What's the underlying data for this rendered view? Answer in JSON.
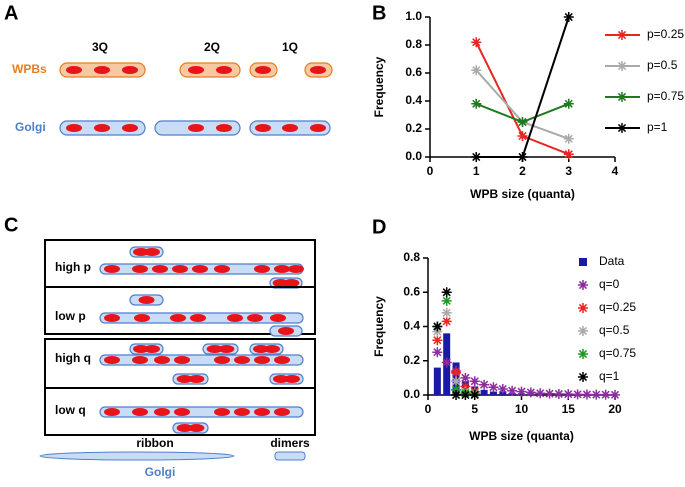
{
  "panel_a": {
    "letter": "A",
    "labels": [
      "3Q",
      "2Q",
      "1Q"
    ],
    "rows": [
      "WPBs",
      "Golgi"
    ]
  },
  "panel_c": {
    "letter": "C",
    "rows": [
      "high p",
      "low p",
      "high q",
      "low q"
    ],
    "ribbon": "ribbon",
    "dimers": "dimers",
    "golgi": "Golgi"
  },
  "chart_data": [
    {
      "panel": "B",
      "type": "line",
      "xlabel": "WPB size (quanta)",
      "ylabel": "Frequency",
      "x": [
        1,
        2,
        3
      ],
      "xlim": [
        0,
        4
      ],
      "xticks": [
        0,
        1,
        2,
        3,
        4
      ],
      "ylim": [
        0,
        1
      ],
      "yticks": [
        {
          "value": 0,
          "label": "0.0"
        },
        {
          "value": 0.2,
          "label": "0.2"
        },
        {
          "value": 0.4,
          "label": "0.4"
        },
        {
          "value": 0.6,
          "label": "0.6"
        },
        {
          "value": 0.8,
          "label": "0.8"
        },
        {
          "value": 1,
          "label": "1.0"
        }
      ],
      "series": [
        {
          "name": "p=0.25",
          "color": "#e8251f",
          "values": [
            0.82,
            0.15,
            0.02
          ]
        },
        {
          "name": "p=0.5",
          "color": "#aaaaaa",
          "values": [
            0.62,
            0.25,
            0.13
          ]
        },
        {
          "name": "p=0.75",
          "color": "#1e7a1e",
          "values": [
            0.38,
            0.25,
            0.38
          ]
        },
        {
          "name": "p=1",
          "color": "#000000",
          "values": [
            0,
            0,
            1
          ]
        }
      ]
    },
    {
      "panel": "D",
      "type": "bar",
      "xlabel": "WPB size (quanta)",
      "ylabel": "Frequency",
      "xlim": [
        0,
        20
      ],
      "xticks": [
        0,
        5,
        10,
        15,
        20
      ],
      "ylim": [
        0,
        0.8
      ],
      "yticks": [
        {
          "value": 0,
          "label": "0.0"
        },
        {
          "value": 0.2,
          "label": "0.2"
        },
        {
          "value": 0.4,
          "label": "0.4"
        },
        {
          "value": 0.6,
          "label": "0.6"
        },
        {
          "value": 0.8,
          "label": "0.8"
        }
      ],
      "series": [
        {
          "name": "Data",
          "type": "bar",
          "color": "#1a1aa6",
          "x": [
            1,
            2,
            3,
            4,
            5,
            6,
            7,
            8,
            9,
            10,
            11,
            12
          ],
          "values": [
            0.16,
            0.36,
            0.19,
            0.08,
            0.05,
            0.03,
            0.02,
            0.02,
            0.01,
            0.01,
            0.01,
            0.01
          ]
        },
        {
          "name": "q=0",
          "type": "scatter",
          "color": "#8b2ca0",
          "x": [
            1,
            2,
            3,
            4,
            5,
            6,
            7,
            8,
            9,
            10,
            11,
            12,
            13,
            14,
            15,
            16,
            17,
            18,
            19,
            20
          ],
          "values": [
            0.25,
            0.19,
            0.14,
            0.1,
            0.08,
            0.06,
            0.045,
            0.035,
            0.025,
            0.02,
            0.015,
            0.01,
            0.008,
            0.006,
            0.005,
            0.004,
            0.003,
            0.002,
            0.002,
            0.001
          ]
        },
        {
          "name": "q=0.25",
          "type": "scatter",
          "color": "#e8251f",
          "x": [
            1,
            2,
            3,
            4,
            5
          ],
          "values": [
            0.32,
            0.43,
            0.13,
            0.05,
            0.02
          ]
        },
        {
          "name": "q=0.5",
          "type": "scatter",
          "color": "#aaaaaa",
          "x": [
            1,
            2,
            3,
            4,
            5
          ],
          "values": [
            0.37,
            0.48,
            0.08,
            0.02,
            0.01
          ]
        },
        {
          "name": "q=0.75",
          "type": "scatter",
          "color": "#1e9a1e",
          "x": [
            1,
            2,
            3,
            4,
            5
          ],
          "values": [
            0.4,
            0.55,
            0.03,
            0.01,
            0.005
          ]
        },
        {
          "name": "q=1",
          "type": "scatter",
          "color": "#000000",
          "x": [
            1,
            2,
            3,
            4,
            5
          ],
          "values": [
            0.4,
            0.6,
            0,
            0,
            0
          ]
        }
      ]
    }
  ]
}
